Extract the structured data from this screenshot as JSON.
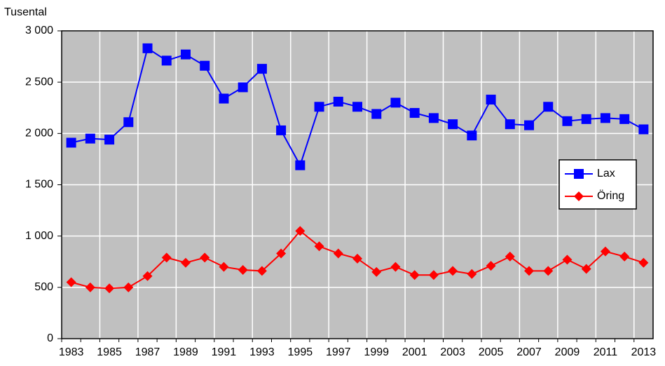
{
  "chart_data": {
    "type": "line",
    "y_label": "Tusental",
    "categories": [
      "1983",
      null,
      "1985",
      null,
      "1987",
      null,
      "1989",
      null,
      "1991",
      null,
      "1993",
      null,
      "1995",
      null,
      "1997",
      null,
      "1999",
      null,
      "2001",
      null,
      "2003",
      null,
      "2005",
      null,
      "2007",
      null,
      "2009",
      null,
      "2011",
      null,
      "2013"
    ],
    "series": [
      {
        "name": "Lax",
        "color": "#0000ff",
        "marker": "square",
        "values": [
          1910,
          1950,
          1940,
          2110,
          2830,
          2710,
          2770,
          2660,
          2340,
          2450,
          2630,
          2030,
          1690,
          2260,
          2310,
          2260,
          2190,
          2300,
          2200,
          2150,
          2090,
          1980,
          2330,
          2090,
          2080,
          2260,
          2120,
          2140,
          2150,
          2140,
          2040
        ]
      },
      {
        "name": "Öring",
        "color": "#ff0000",
        "marker": "diamond",
        "values": [
          550,
          500,
          490,
          500,
          610,
          790,
          740,
          790,
          700,
          670,
          660,
          830,
          1050,
          900,
          830,
          780,
          650,
          700,
          620,
          620,
          660,
          630,
          710,
          800,
          660,
          660,
          770,
          680,
          850,
          800,
          740
        ]
      }
    ],
    "ylim": [
      0,
      3000
    ],
    "yticks": [
      0,
      500,
      {
        "value": 1000,
        "label": "1 000"
      },
      {
        "value": 1500,
        "label": "1 500"
      },
      {
        "value": 2000,
        "label": "2 000"
      },
      {
        "value": 2500,
        "label": "2 500"
      },
      {
        "value": 3000,
        "label": "3 000"
      }
    ],
    "grid": true,
    "legend": "right"
  }
}
